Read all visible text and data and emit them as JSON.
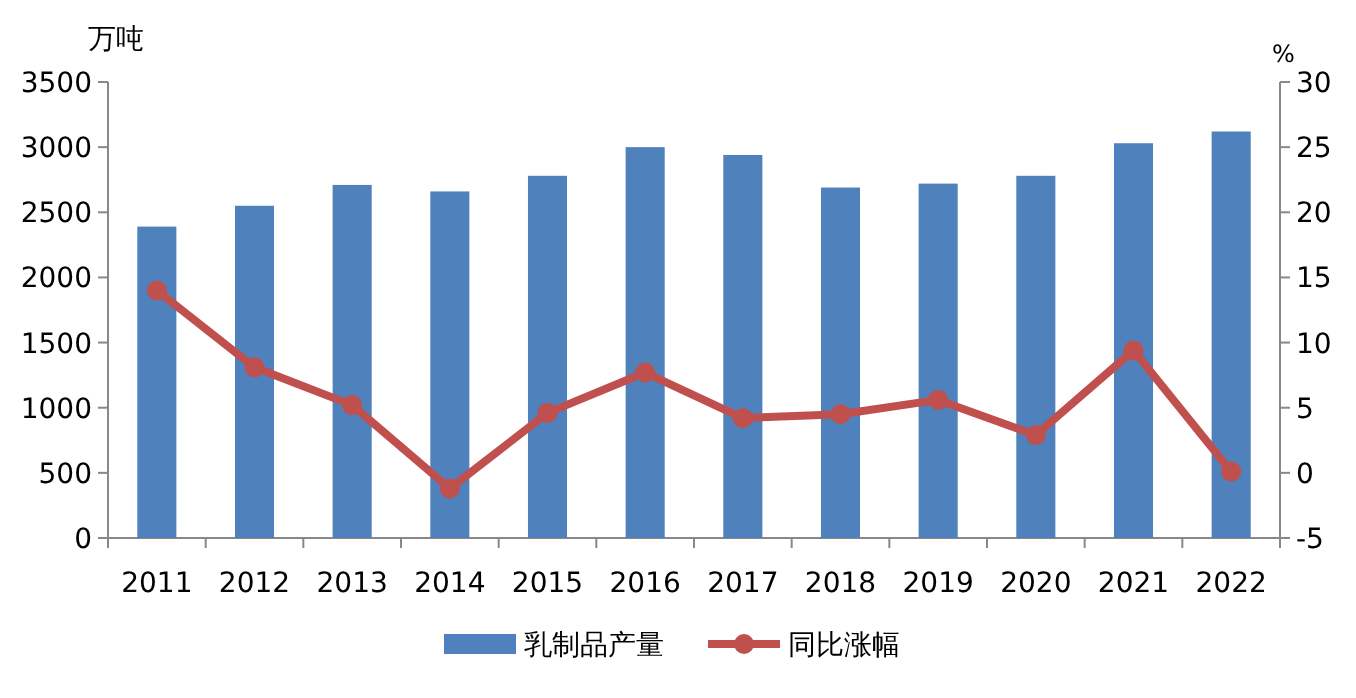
{
  "chart_data": {
    "type": "bar",
    "ylabel": "万吨",
    "y2label": "%",
    "categories": [
      "2011",
      "2012",
      "2013",
      "2014",
      "2015",
      "2016",
      "2017",
      "2018",
      "2019",
      "2020",
      "2021",
      "2022"
    ],
    "series": [
      {
        "name": "乳制品产量",
        "color": "#4f81bd",
        "values": [
          2390,
          2550,
          2710,
          2660,
          2780,
          3000,
          2940,
          2690,
          2720,
          2780,
          3030,
          3120
        ]
      },
      {
        "name": "同比涨幅",
        "type": "line",
        "axis": "y2",
        "color": "#c0504d",
        "marker": "circle",
        "values": [
          14.0,
          8.1,
          5.2,
          -1.2,
          4.6,
          7.7,
          4.2,
          4.5,
          5.6,
          2.9,
          9.4,
          0.1
        ]
      }
    ],
    "ylim": [
      0,
      3500
    ],
    "yticks": [
      0,
      500,
      1000,
      1500,
      2000,
      2500,
      3000,
      3500
    ],
    "y2lim": [
      -5,
      30
    ],
    "y2ticks": [
      -5,
      0,
      5,
      10,
      15,
      20,
      25,
      30
    ],
    "grid": false,
    "legend": "bottom"
  }
}
